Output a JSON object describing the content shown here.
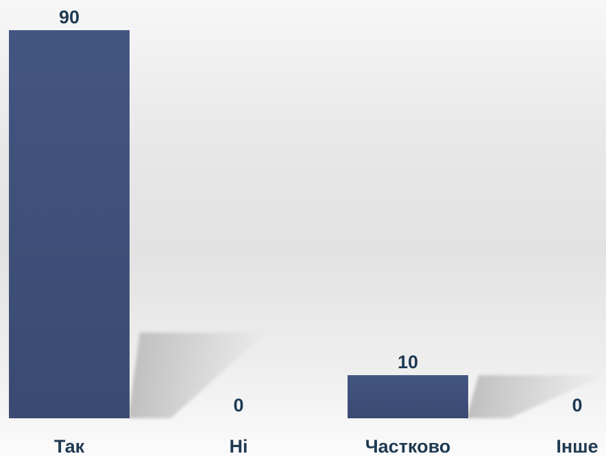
{
  "chart_data": {
    "type": "bar",
    "categories": [
      "Так",
      "Ні",
      "Частково",
      "Інше"
    ],
    "values": [
      90,
      0,
      10,
      0
    ],
    "data_labels": [
      "90",
      "0",
      "10",
      "0"
    ],
    "title": "",
    "xlabel": "",
    "ylabel": "",
    "ylim": [
      0,
      90
    ],
    "grid": false,
    "legend": "none",
    "bar_color": "#3a4a72",
    "bar_color_top": "#435581",
    "label_color": "#1f3a52",
    "shadow_color": "#b5b5b5"
  }
}
